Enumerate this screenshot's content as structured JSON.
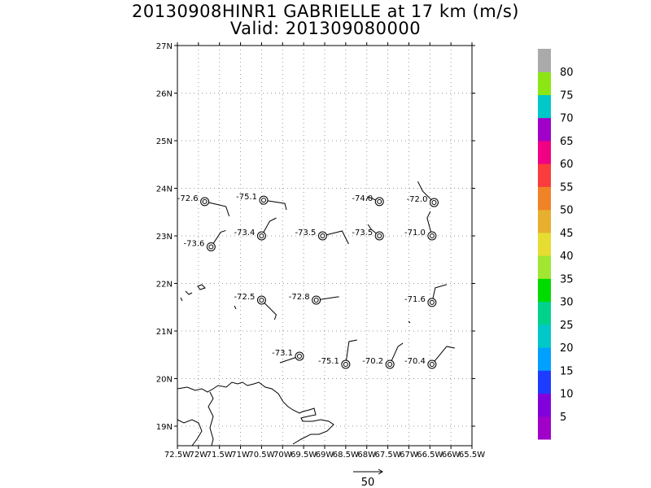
{
  "title": {
    "line1": "20130908HINR1 GABRIELLE at 17 km (m/s)",
    "line2": "Valid: 201309080000"
  },
  "lat_labels": [
    "27N",
    "26N",
    "25N",
    "24N",
    "23N",
    "22N",
    "21N",
    "20N",
    "19N"
  ],
  "lon_labels": [
    "72.5W",
    "72W",
    "71.5W",
    "71W",
    "70.5W",
    "70W",
    "69.5W",
    "69W",
    "68.5W",
    "68W",
    "67.5W",
    "67W",
    "66.5W",
    "66W",
    "65.5W"
  ],
  "colorbar": {
    "labels": [
      "5",
      "10",
      "15",
      "20",
      "25",
      "30",
      "35",
      "40",
      "45",
      "50",
      "55",
      "60",
      "65",
      "70",
      "75",
      "80"
    ],
    "colors": [
      "#a000c8",
      "#8200dc",
      "#1e3cff",
      "#00a0ff",
      "#00c8c8",
      "#00d28c",
      "#00dc00",
      "#a0e632",
      "#e6dc32",
      "#e6af2d",
      "#f08228",
      "#fa3c3c",
      "#f00082",
      "#a000c8",
      "#00c8c8",
      "#8ce614",
      "#aaaaaa"
    ]
  },
  "reference_vector": {
    "label": "50"
  },
  "observations": [
    {
      "lon": -71.85,
      "lat": 23.72,
      "value": "-72.6"
    },
    {
      "lon": -70.45,
      "lat": 23.75,
      "value": "-75.1"
    },
    {
      "lon": -67.7,
      "lat": 23.72,
      "value": "-74.0"
    },
    {
      "lon": -66.4,
      "lat": 23.7,
      "value": "-72.0"
    },
    {
      "lon": -71.7,
      "lat": 22.77,
      "value": "-73.6"
    },
    {
      "lon": -70.5,
      "lat": 23.0,
      "value": "-73.4"
    },
    {
      "lon": -69.05,
      "lat": 23.0,
      "value": "-73.5"
    },
    {
      "lon": -67.7,
      "lat": 23.0,
      "value": "-73.5"
    },
    {
      "lon": -66.45,
      "lat": 23.0,
      "value": "-71.0"
    },
    {
      "lon": -70.5,
      "lat": 21.65,
      "value": "-72.5"
    },
    {
      "lon": -69.2,
      "lat": 21.65,
      "value": "-72.8"
    },
    {
      "lon": -66.45,
      "lat": 21.6,
      "value": "-71.6"
    },
    {
      "lon": -69.6,
      "lat": 20.47,
      "value": "-73.1"
    },
    {
      "lon": -68.5,
      "lat": 20.3,
      "value": "-75.1"
    },
    {
      "lon": -67.45,
      "lat": 20.3,
      "value": "-70.2"
    },
    {
      "lon": -66.45,
      "lat": 20.3,
      "value": "-70.4"
    }
  ]
}
